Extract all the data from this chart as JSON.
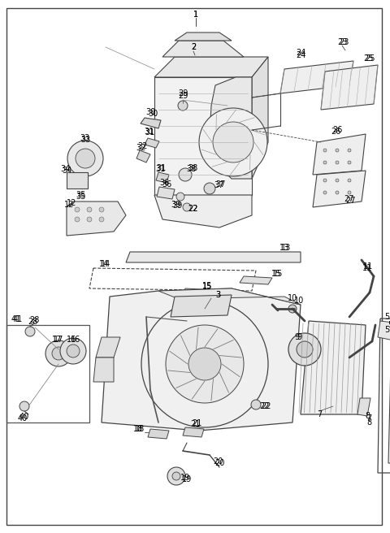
{
  "bg_color": "#ffffff",
  "line_color": "#444444",
  "text_color": "#000000",
  "fig_width": 4.8,
  "fig_height": 6.56,
  "dpi": 100
}
